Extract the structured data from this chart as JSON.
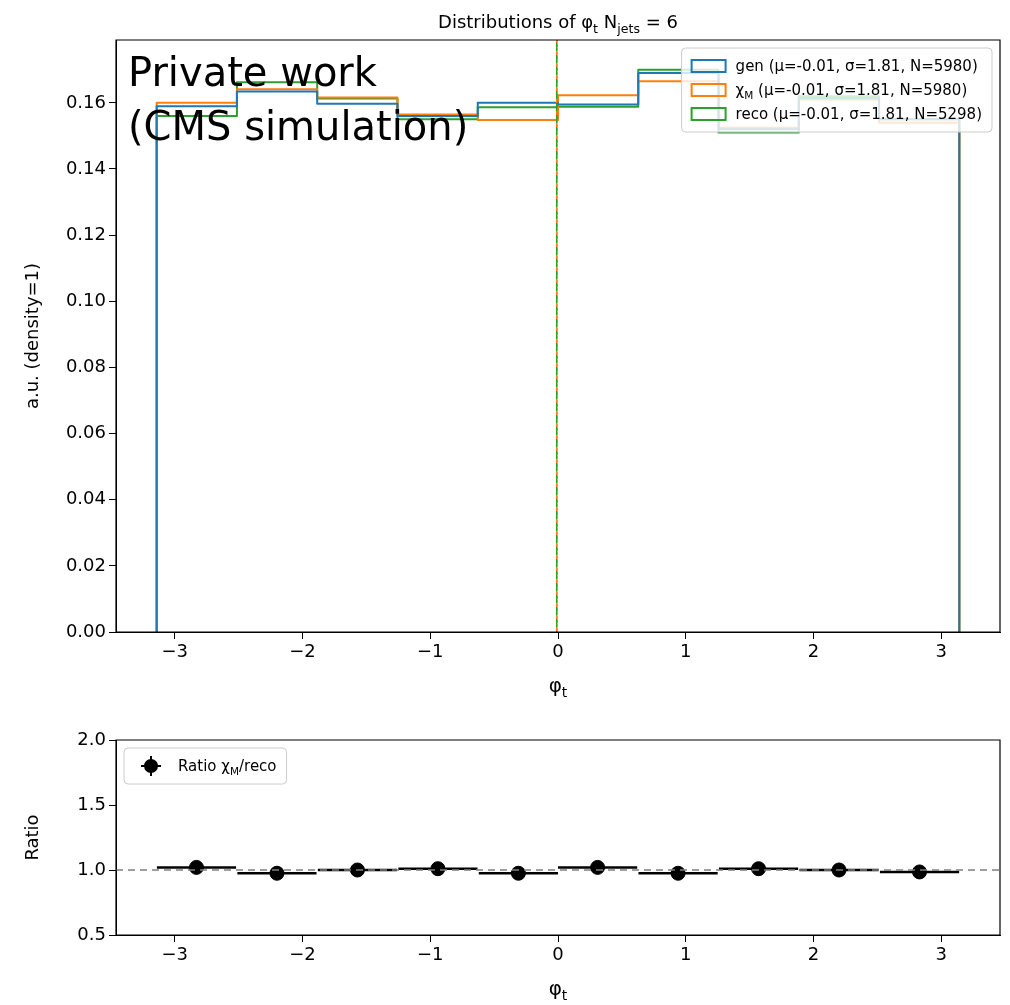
{
  "chart_data": [
    {
      "type": "histogram",
      "title": "Distributions of φ$_{t}$ N$_{jets}$ = 6",
      "xlabel": "φ$_{t}$",
      "ylabel": "a.u. (density=1)",
      "bins": [
        -3.1416,
        -2.5133,
        -1.885,
        -1.2566,
        -0.6283,
        0,
        0.6283,
        1.2566,
        1.885,
        2.5133,
        3.1416
      ],
      "series": [
        {
          "name": "gen (μ=-0.01, σ=1.81, N=5980)",
          "color": "#1f77b4",
          "values": [
            0.159,
            0.1634,
            0.1597,
            0.156,
            0.16,
            0.1595,
            0.169,
            0.152,
            0.1615,
            0.155
          ]
        },
        {
          "name": "χ$_{M}$ (μ=-0.01, σ=1.81, N=5980)",
          "color": "#ff7f0e",
          "values": [
            0.16,
            0.1641,
            0.1616,
            0.1565,
            0.1548,
            0.1623,
            0.1665,
            0.1525,
            0.161,
            0.154
          ]
        },
        {
          "name": "reco (μ=-0.01, σ=1.81, N=5298)",
          "color": "#2ca02c",
          "values": [
            0.156,
            0.1662,
            0.1613,
            0.155,
            0.1587,
            0.1588,
            0.17,
            0.151,
            0.162,
            0.155
          ]
        }
      ],
      "xlim": [
        -3.46,
        3.46
      ],
      "ylim": [
        0,
        0.179
      ],
      "xticks": [
        {
          "value": -3,
          "label": "−3"
        },
        {
          "value": -2,
          "label": "−2"
        },
        {
          "value": -1,
          "label": "−1"
        },
        0,
        1,
        2,
        3
      ],
      "yticks": [
        {
          "value": 0,
          "label": "0.00"
        },
        {
          "value": 0.02,
          "label": "0.02"
        },
        {
          "value": 0.04,
          "label": "0.04"
        },
        {
          "value": 0.06,
          "label": "0.06"
        },
        {
          "value": 0.08,
          "label": "0.08"
        },
        {
          "value": 0.1,
          "label": "0.10"
        },
        {
          "value": 0.12,
          "label": "0.12"
        },
        {
          "value": 0.14,
          "label": "0.14"
        },
        {
          "value": 0.16,
          "label": "0.16"
        }
      ],
      "ref_lines": [
        {
          "axis": "x",
          "value": -0.01,
          "color": "#1f77b4",
          "line_style": "dashed"
        },
        {
          "axis": "x",
          "value": -0.01,
          "color": "#ff7f0e",
          "line_style": "dashed"
        },
        {
          "axis": "x",
          "value": -0.01,
          "color": "#2ca02c",
          "line_style": "dashed"
        }
      ],
      "legend": "top right",
      "annotations": [
        "Private work",
        "(CMS simulation)"
      ]
    },
    {
      "type": "scatter",
      "xlabel": "φ$_{t}$",
      "ylabel": "Ratio",
      "marker": "circle",
      "legend": "top left",
      "series": [
        {
          "name": "Ratio χ$_{M}$/reco",
          "color": "#000000",
          "x": [
            -2.83,
            -2.2,
            -1.57,
            -0.94,
            -0.31,
            0.31,
            0.94,
            1.57,
            2.2,
            2.83
          ],
          "values": [
            1.02,
            0.975,
            1.0,
            1.01,
            0.975,
            1.02,
            0.975,
            1.01,
            1.0,
            0.985
          ],
          "errors": [
            0.05,
            0.05,
            0.05,
            0.05,
            0.05,
            0.05,
            0.05,
            0.05,
            0.05,
            0.05
          ],
          "xerrors": [
            0.31,
            0.31,
            0.31,
            0.31,
            0.31,
            0.31,
            0.31,
            0.31,
            0.31,
            0.31
          ]
        }
      ],
      "xlim": [
        -3.46,
        3.46
      ],
      "ylim": [
        0.5,
        2.0
      ],
      "xticks": [
        {
          "value": -3,
          "label": "−3"
        },
        {
          "value": -2,
          "label": "−2"
        },
        {
          "value": -1,
          "label": "−1"
        },
        0,
        1,
        2,
        3
      ],
      "yticks": [
        {
          "value": 0.5,
          "label": "0.5"
        },
        {
          "value": 1,
          "label": "1.0"
        },
        {
          "value": 1.5,
          "label": "1.5"
        },
        {
          "value": 2,
          "label": "2.0"
        }
      ],
      "ref_lines": [
        {
          "axis": "y",
          "value": 1,
          "color": "#808080",
          "line_style": "dashed"
        }
      ]
    }
  ]
}
